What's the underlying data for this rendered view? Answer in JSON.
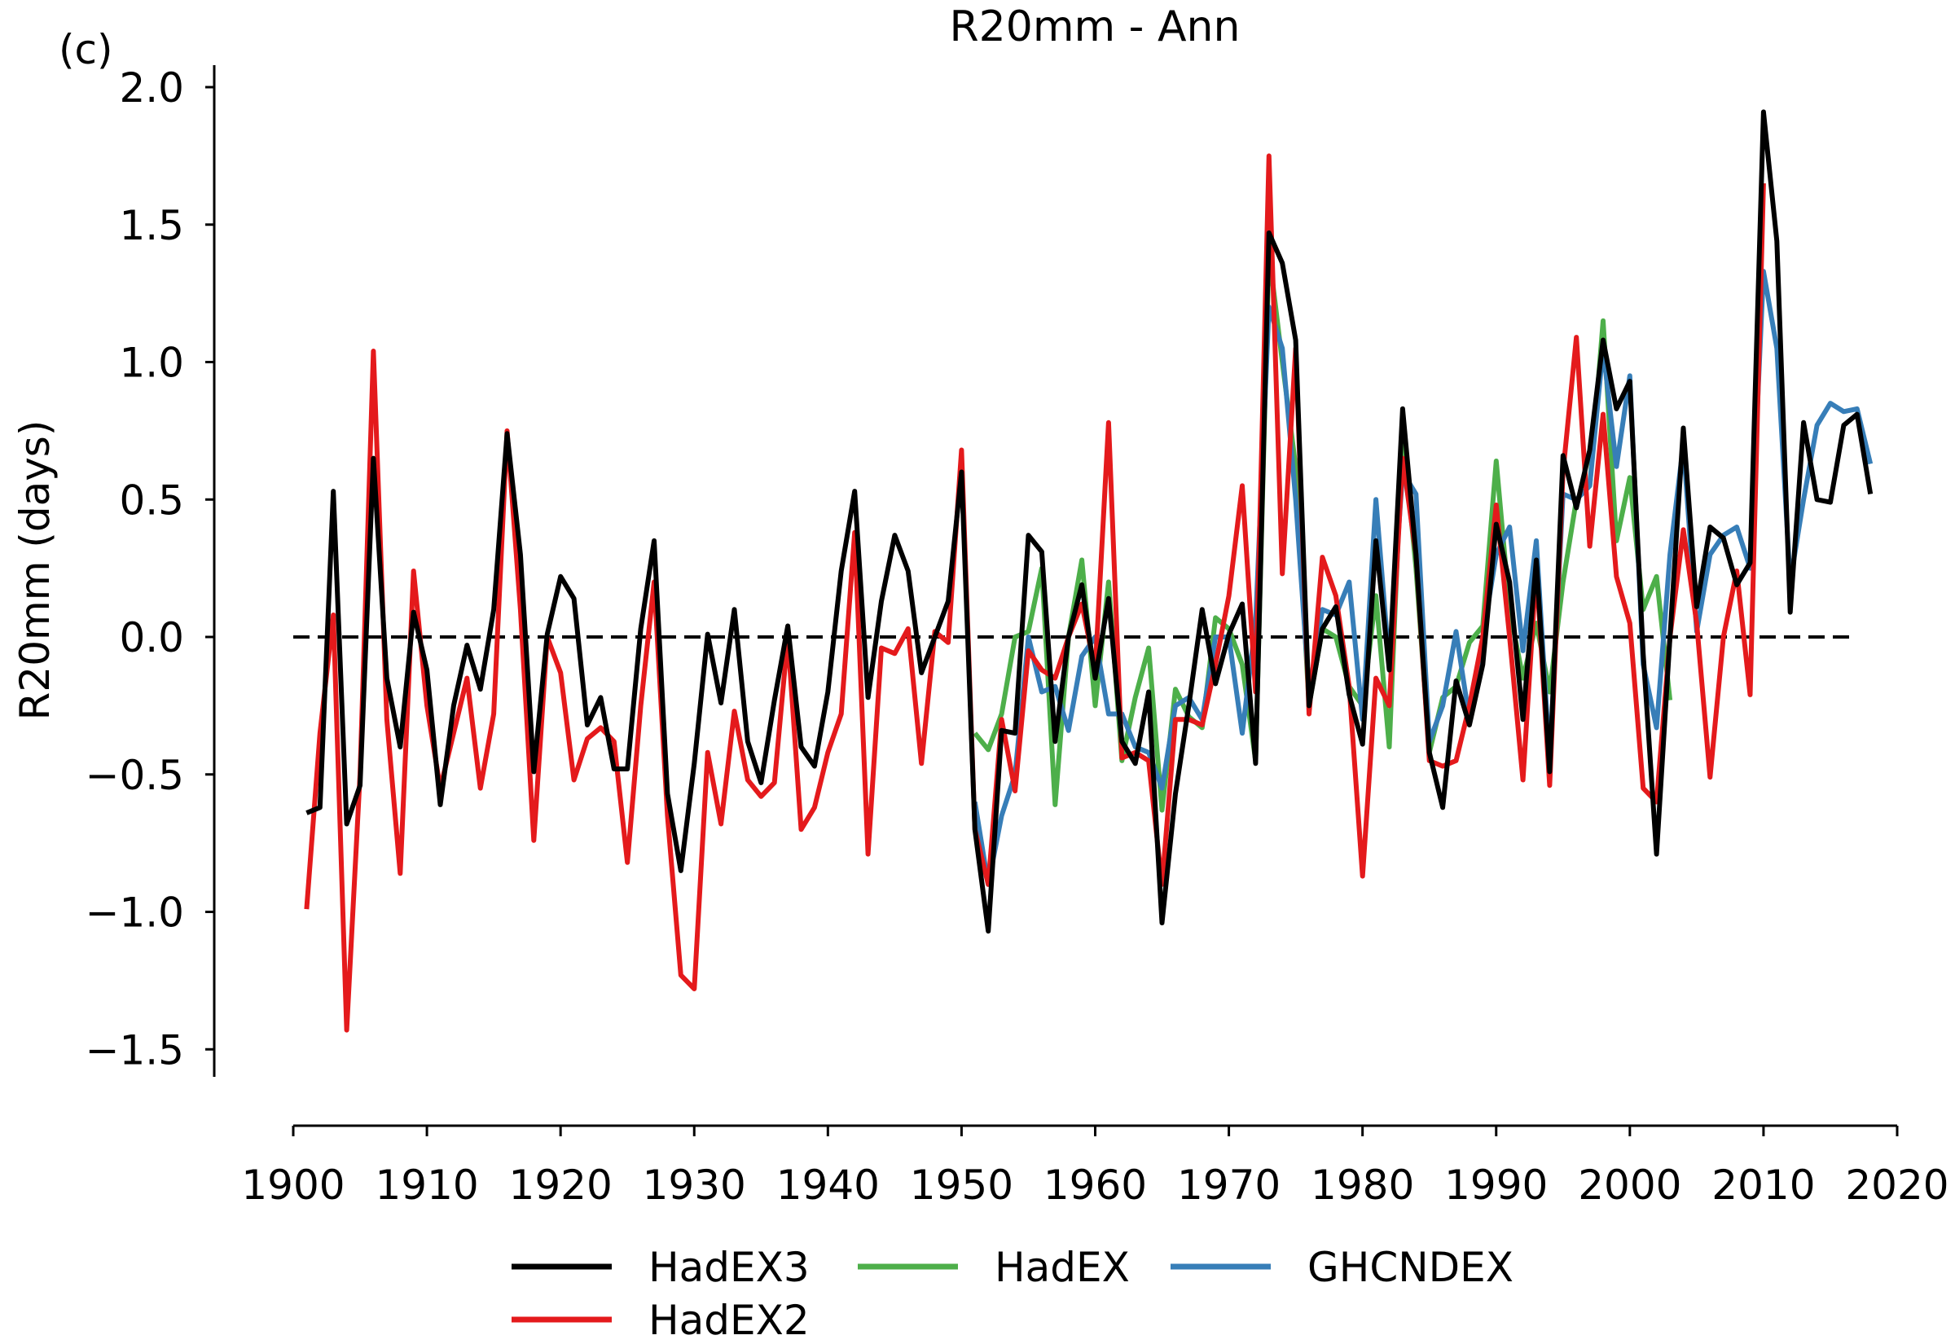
{
  "panel_label": "(c)",
  "chart_data": {
    "type": "line",
    "title": "R20mm - Ann",
    "xlabel": "",
    "ylabel": "R20mm (days)",
    "xlim": [
      1900,
      2020
    ],
    "ylim": [
      -1.6,
      2.05
    ],
    "xticks": [
      1900,
      1910,
      1920,
      1930,
      1940,
      1950,
      1960,
      1970,
      1980,
      1990,
      2000,
      2010,
      2020
    ],
    "yticks": [
      -1.5,
      -1.0,
      -0.5,
      0.0,
      0.5,
      1.0,
      1.5,
      2.0
    ],
    "ytick_labels": [
      "−1.5",
      "−1.0",
      "−0.5",
      "0.0",
      "0.5",
      "1.0",
      "1.5",
      "2.0"
    ],
    "xtick_labels": [
      "1900",
      "1910",
      "1920",
      "1930",
      "1940",
      "1950",
      "1960",
      "1970",
      "1980",
      "1990",
      "2000",
      "2010",
      "2020"
    ],
    "reference_line": {
      "y": 0.0,
      "style": "dashed",
      "color": "#000000"
    },
    "grid": false,
    "legend_placement": "bottom",
    "legend": [
      {
        "name": "HadEX3",
        "color": "#000000"
      },
      {
        "name": "HadEX",
        "color": "#4daf4a"
      },
      {
        "name": "GHCNDEX",
        "color": "#377eb8"
      },
      {
        "name": "HadEX2",
        "color": "#e41a1c"
      }
    ],
    "series": [
      {
        "name": "HadEX",
        "color": "#4daf4a",
        "x": [
          1951,
          1952,
          1953,
          1954,
          1955,
          1956,
          1957,
          1958,
          1959,
          1960,
          1961,
          1962,
          1963,
          1964,
          1965,
          1966,
          1967,
          1968,
          1969,
          1970,
          1971,
          1972,
          1973,
          1974,
          1975,
          1976,
          1977,
          1978,
          1979,
          1980,
          1981,
          1982,
          1983,
          1984,
          1985,
          1986,
          1987,
          1988,
          1989,
          1990,
          1991,
          1992,
          1993,
          1994,
          1995,
          1996,
          1997,
          1998,
          1999,
          2000,
          2001,
          2002,
          2003
        ],
        "y": [
          -0.35,
          -0.41,
          -0.28,
          0.0,
          0.02,
          0.25,
          -0.61,
          0.0,
          0.28,
          -0.25,
          0.2,
          -0.45,
          -0.22,
          -0.04,
          -0.63,
          -0.19,
          -0.29,
          -0.33,
          0.07,
          0.03,
          -0.1,
          -0.45,
          1.4,
          1.0,
          0.62,
          -0.25,
          0.03,
          0.0,
          -0.18,
          -0.25,
          0.15,
          -0.4,
          0.75,
          0.25,
          -0.42,
          -0.22,
          -0.18,
          -0.02,
          0.04,
          0.64,
          0.1,
          -0.15,
          0.05,
          -0.2,
          0.2,
          0.5,
          0.55,
          1.15,
          0.35,
          0.58,
          0.1,
          0.22,
          -0.23
        ]
      },
      {
        "name": "GHCNDEX",
        "color": "#377eb8",
        "x": [
          1951,
          1952,
          1953,
          1954,
          1955,
          1956,
          1957,
          1958,
          1959,
          1960,
          1961,
          1962,
          1963,
          1964,
          1965,
          1966,
          1967,
          1968,
          1969,
          1970,
          1971,
          1972,
          1973,
          1974,
          1975,
          1976,
          1977,
          1978,
          1979,
          1980,
          1981,
          1982,
          1983,
          1984,
          1985,
          1986,
          1987,
          1988,
          1989,
          1990,
          1991,
          1992,
          1993,
          1994,
          1995,
          1996,
          1997,
          1998,
          1999,
          2000,
          2001,
          2002,
          2003,
          2004,
          2005,
          2006,
          2007,
          2008,
          2009,
          2010,
          2011,
          2012,
          2013,
          2014,
          2015,
          2016,
          2017,
          2018
        ],
        "y": [
          -0.6,
          -0.9,
          -0.65,
          -0.5,
          0.0,
          -0.2,
          -0.18,
          -0.34,
          -0.07,
          0.0,
          -0.28,
          -0.28,
          -0.4,
          -0.42,
          -0.55,
          -0.25,
          -0.22,
          -0.3,
          0.0,
          0.0,
          -0.35,
          0.05,
          1.2,
          1.05,
          0.5,
          -0.2,
          0.1,
          0.08,
          0.2,
          -0.3,
          0.5,
          -0.1,
          0.6,
          0.52,
          -0.38,
          -0.25,
          0.02,
          -0.3,
          0.0,
          0.3,
          0.4,
          -0.05,
          0.35,
          -0.45,
          0.52,
          0.5,
          0.55,
          1.05,
          0.62,
          0.95,
          -0.1,
          -0.33,
          0.3,
          0.7,
          0.02,
          0.3,
          0.37,
          0.4,
          0.25,
          1.33,
          1.05,
          0.2,
          0.5,
          0.77,
          0.85,
          0.82,
          0.83,
          0.63
        ]
      },
      {
        "name": "HadEX2",
        "color": "#e41a1c",
        "x": [
          1901,
          1902,
          1903,
          1904,
          1905,
          1906,
          1907,
          1908,
          1909,
          1910,
          1911,
          1912,
          1913,
          1914,
          1915,
          1916,
          1917,
          1918,
          1919,
          1920,
          1921,
          1922,
          1923,
          1924,
          1925,
          1926,
          1927,
          1928,
          1929,
          1930,
          1931,
          1932,
          1933,
          1934,
          1935,
          1936,
          1937,
          1938,
          1939,
          1940,
          1941,
          1942,
          1943,
          1944,
          1945,
          1946,
          1947,
          1948,
          1949,
          1950,
          1951,
          1952,
          1953,
          1954,
          1955,
          1956,
          1957,
          1958,
          1959,
          1960,
          1961,
          1962,
          1963,
          1964,
          1965,
          1966,
          1967,
          1968,
          1969,
          1970,
          1971,
          1972,
          1973,
          1974,
          1975,
          1976,
          1977,
          1978,
          1979,
          1980,
          1981,
          1982,
          1983,
          1984,
          1985,
          1986,
          1987,
          1988,
          1989,
          1990,
          1991,
          1992,
          1993,
          1994,
          1995,
          1996,
          1997,
          1998,
          1999,
          2000,
          2001,
          2002,
          2003,
          2004,
          2005,
          2006,
          2007,
          2008,
          2009,
          2010
        ],
        "y": [
          -0.99,
          -0.35,
          0.08,
          -1.43,
          -0.5,
          1.04,
          -0.3,
          -0.86,
          0.24,
          -0.25,
          -0.55,
          -0.35,
          -0.15,
          -0.55,
          -0.28,
          0.75,
          0.1,
          -0.74,
          0.0,
          -0.13,
          -0.52,
          -0.37,
          -0.33,
          -0.38,
          -0.82,
          -0.25,
          0.2,
          -0.65,
          -1.23,
          -1.28,
          -0.42,
          -0.68,
          -0.27,
          -0.52,
          -0.58,
          -0.53,
          0.0,
          -0.7,
          -0.62,
          -0.42,
          -0.28,
          0.38,
          -0.79,
          -0.04,
          -0.06,
          0.03,
          -0.46,
          0.02,
          -0.02,
          0.68,
          -0.7,
          -0.9,
          -0.3,
          -0.56,
          -0.05,
          -0.12,
          -0.15,
          0.0,
          0.12,
          -0.12,
          0.78,
          -0.44,
          -0.42,
          -0.45,
          -0.9,
          -0.3,
          -0.3,
          -0.32,
          -0.1,
          0.15,
          0.55,
          -0.2,
          1.75,
          0.23,
          1.05,
          -0.28,
          0.29,
          0.15,
          -0.18,
          -0.87,
          -0.15,
          -0.25,
          0.65,
          0.3,
          -0.45,
          -0.47,
          -0.45,
          -0.25,
          0.0,
          0.48,
          0.0,
          -0.52,
          0.25,
          -0.54,
          0.6,
          1.09,
          0.33,
          0.81,
          0.22,
          0.05,
          -0.55,
          -0.6,
          0.0,
          0.39,
          0.05,
          -0.51,
          0.0,
          0.24,
          -0.21,
          1.65
        ]
      },
      {
        "name": "HadEX3",
        "color": "#000000",
        "x": [
          1901,
          1902,
          1903,
          1904,
          1905,
          1906,
          1907,
          1908,
          1909,
          1910,
          1911,
          1912,
          1913,
          1914,
          1915,
          1916,
          1917,
          1918,
          1919,
          1920,
          1921,
          1922,
          1923,
          1924,
          1925,
          1926,
          1927,
          1928,
          1929,
          1930,
          1931,
          1932,
          1933,
          1934,
          1935,
          1936,
          1937,
          1938,
          1939,
          1940,
          1941,
          1942,
          1943,
          1944,
          1945,
          1946,
          1947,
          1948,
          1949,
          1950,
          1951,
          1952,
          1953,
          1954,
          1955,
          1956,
          1957,
          1958,
          1959,
          1960,
          1961,
          1962,
          1963,
          1964,
          1965,
          1966,
          1967,
          1968,
          1969,
          1970,
          1971,
          1972,
          1973,
          1974,
          1975,
          1976,
          1977,
          1978,
          1979,
          1980,
          1981,
          1982,
          1983,
          1984,
          1985,
          1986,
          1987,
          1988,
          1989,
          1990,
          1991,
          1992,
          1993,
          1994,
          1995,
          1996,
          1997,
          1998,
          1999,
          2000,
          2001,
          2002,
          2003,
          2004,
          2005,
          2006,
          2007,
          2008,
          2009,
          2010,
          2011,
          2012,
          2013,
          2014,
          2015,
          2016,
          2017,
          2018
        ],
        "y": [
          -0.64,
          -0.62,
          0.53,
          -0.68,
          -0.54,
          0.65,
          -0.15,
          -0.4,
          0.09,
          -0.12,
          -0.61,
          -0.25,
          -0.03,
          -0.19,
          0.1,
          0.74,
          0.3,
          -0.49,
          0.01,
          0.22,
          0.14,
          -0.32,
          -0.22,
          -0.48,
          -0.48,
          0.03,
          0.35,
          -0.57,
          -0.85,
          -0.46,
          0.01,
          -0.24,
          0.1,
          -0.38,
          -0.53,
          -0.23,
          0.04,
          -0.4,
          -0.47,
          -0.2,
          0.24,
          0.53,
          -0.22,
          0.13,
          0.37,
          0.24,
          -0.13,
          0.0,
          0.13,
          0.6,
          -0.7,
          -1.07,
          -0.34,
          -0.35,
          0.37,
          0.31,
          -0.38,
          0.0,
          0.19,
          -0.15,
          0.14,
          -0.38,
          -0.46,
          -0.2,
          -1.04,
          -0.57,
          -0.25,
          0.1,
          -0.17,
          0.01,
          0.12,
          -0.46,
          1.47,
          1.36,
          1.08,
          -0.25,
          0.03,
          0.11,
          -0.21,
          -0.39,
          0.35,
          -0.12,
          0.83,
          0.3,
          -0.42,
          -0.62,
          -0.16,
          -0.32,
          -0.1,
          0.41,
          0.2,
          -0.3,
          0.28,
          -0.49,
          0.66,
          0.47,
          0.68,
          1.08,
          0.83,
          0.93,
          -0.06,
          -0.79,
          0.0,
          0.76,
          0.11,
          0.4,
          0.36,
          0.19,
          0.27,
          1.91,
          1.44,
          0.09,
          0.78,
          0.5,
          0.49,
          0.77,
          0.81,
          0.52
        ]
      }
    ]
  }
}
